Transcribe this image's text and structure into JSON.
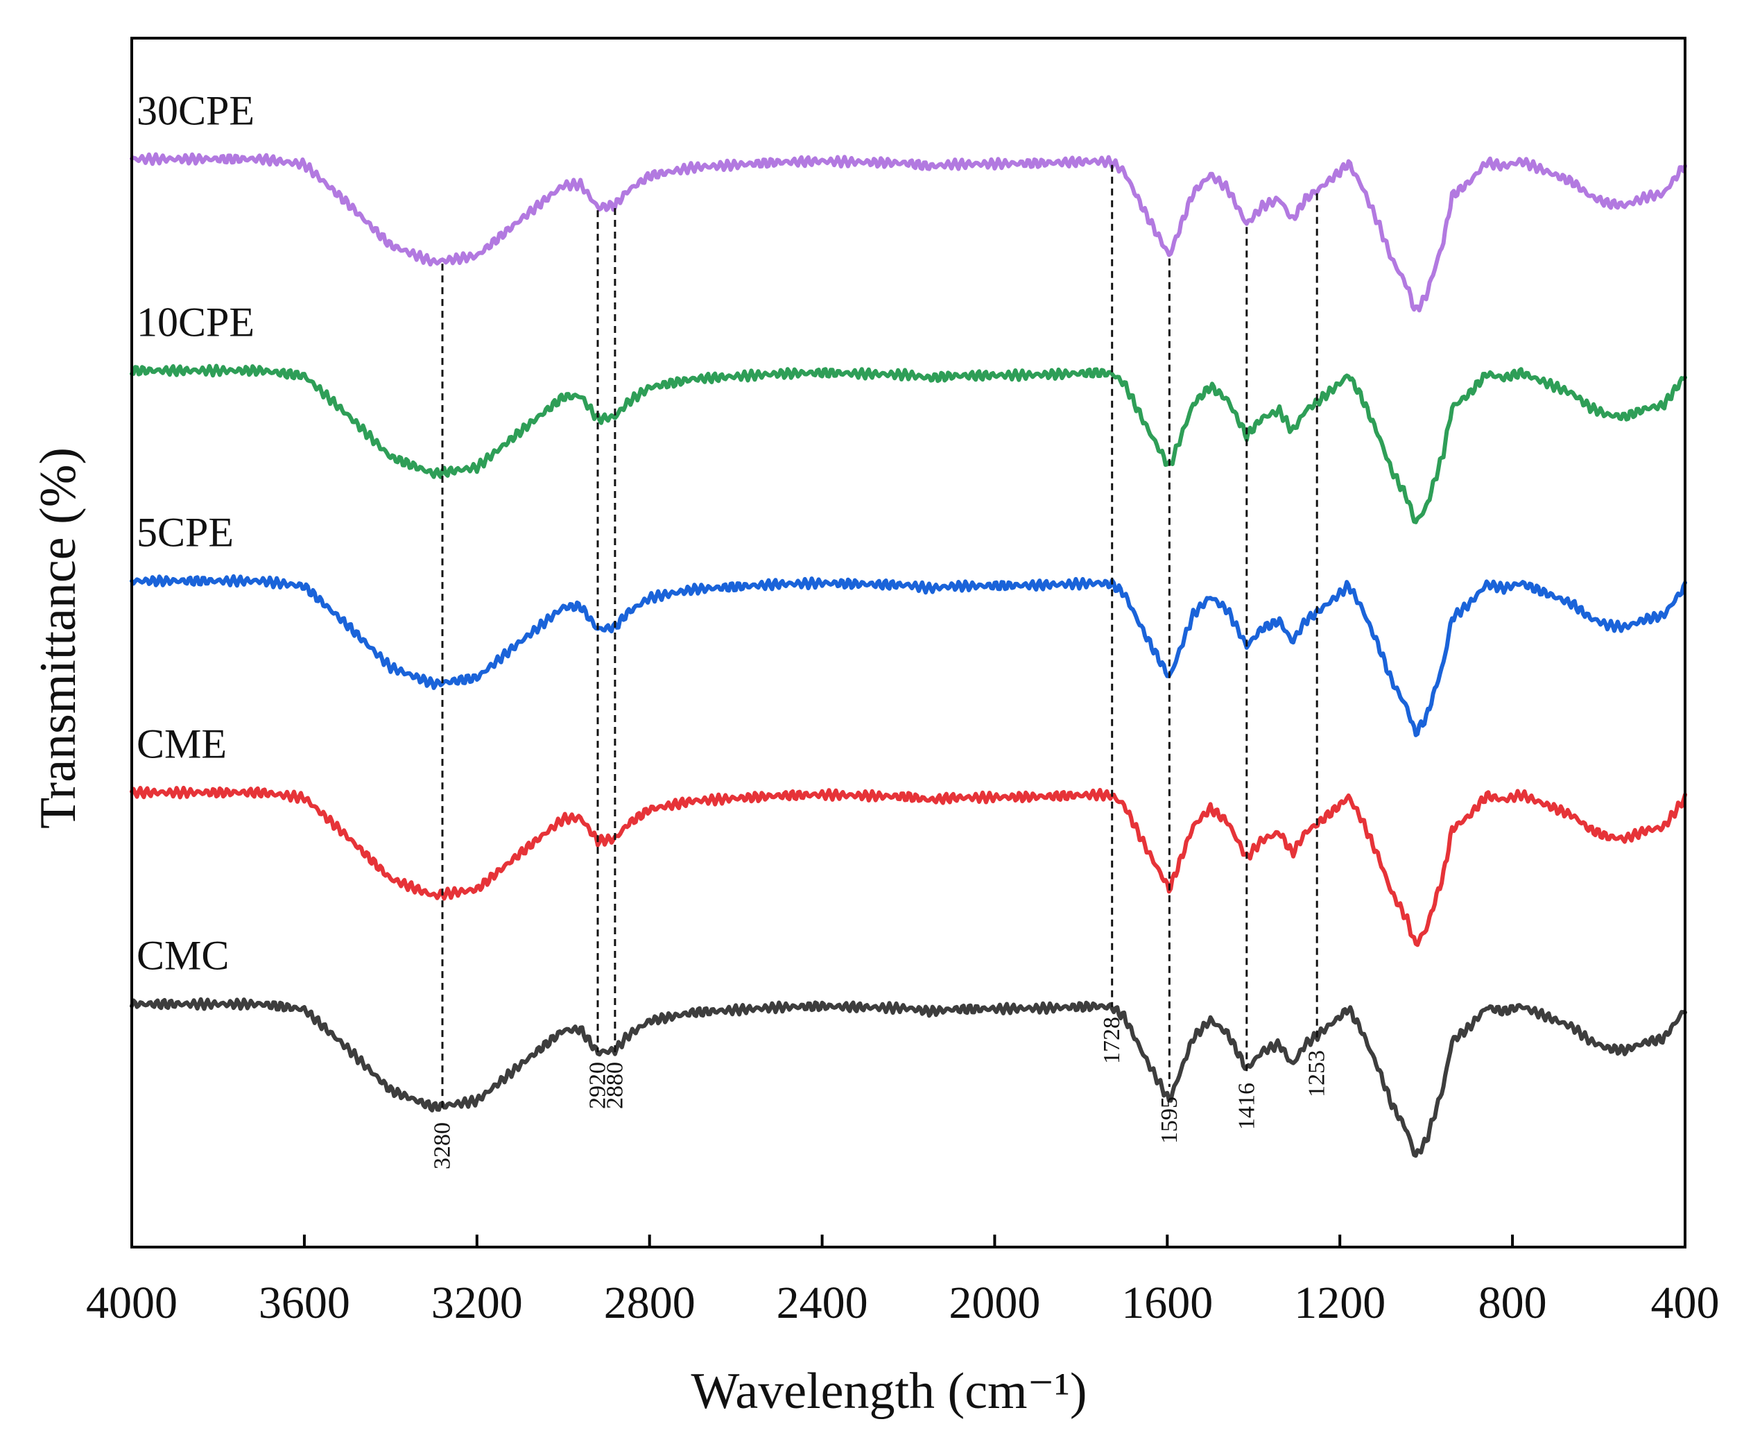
{
  "chart_data": {
    "type": "line",
    "title": "",
    "xlabel": "Wavelength (cm⁻¹)",
    "ylabel": "Transmittance (%)",
    "xlim": [
      4000,
      400
    ],
    "x_reversed": true,
    "ylim": [
      0,
      1
    ],
    "grid": false,
    "legend": "inline labels above each curve (left)",
    "x_ticks": [
      4000,
      3600,
      3200,
      2800,
      2400,
      2000,
      1600,
      1200,
      800,
      400
    ],
    "x_tick_labels": [
      "4000",
      "3600",
      "3200",
      "2800",
      "2400",
      "2000",
      "1600",
      "1200",
      "800",
      "400"
    ],
    "peak_markers": [
      {
        "wavenumber": 3280,
        "label": "3280"
      },
      {
        "wavenumber": 2920,
        "label": "2920"
      },
      {
        "wavenumber": 2880,
        "label": "2880"
      },
      {
        "wavenumber": 1728,
        "label": "1728"
      },
      {
        "wavenumber": 1595,
        "label": "1595"
      },
      {
        "wavenumber": 1416,
        "label": "1416"
      },
      {
        "wavenumber": 1253,
        "label": "1253"
      }
    ],
    "shape_points": [
      [
        4000,
        0.0
      ],
      [
        3700,
        0.0
      ],
      [
        3600,
        -0.05
      ],
      [
        3500,
        -0.42
      ],
      [
        3400,
        -0.82
      ],
      [
        3300,
        -0.98
      ],
      [
        3200,
        -0.92
      ],
      [
        3100,
        -0.58
      ],
      [
        3000,
        -0.25
      ],
      [
        2960,
        -0.24
      ],
      [
        2920,
        -0.46
      ],
      [
        2880,
        -0.44
      ],
      [
        2850,
        -0.3
      ],
      [
        2800,
        -0.16
      ],
      [
        2700,
        -0.08
      ],
      [
        2500,
        -0.03
      ],
      [
        2400,
        -0.02
      ],
      [
        2200,
        -0.04
      ],
      [
        2150,
        -0.07
      ],
      [
        2100,
        -0.05
      ],
      [
        1900,
        -0.04
      ],
      [
        1760,
        -0.02
      ],
      [
        1728,
        -0.03
      ],
      [
        1700,
        -0.12
      ],
      [
        1650,
        -0.52
      ],
      [
        1595,
        -0.92
      ],
      [
        1540,
        -0.32
      ],
      [
        1500,
        -0.15
      ],
      [
        1460,
        -0.28
      ],
      [
        1416,
        -0.62
      ],
      [
        1380,
        -0.45
      ],
      [
        1340,
        -0.38
      ],
      [
        1310,
        -0.58
      ],
      [
        1280,
        -0.38
      ],
      [
        1253,
        -0.3
      ],
      [
        1200,
        -0.12
      ],
      [
        1180,
        -0.04
      ],
      [
        1150,
        -0.25
      ],
      [
        1110,
        -0.62
      ],
      [
        1080,
        -0.95
      ],
      [
        1045,
        -1.2
      ],
      [
        1025,
        -1.45
      ],
      [
        1000,
        -1.3
      ],
      [
        960,
        -0.78
      ],
      [
        940,
        -0.35
      ],
      [
        900,
        -0.22
      ],
      [
        860,
        -0.03
      ],
      [
        820,
        -0.07
      ],
      [
        780,
        -0.02
      ],
      [
        720,
        -0.12
      ],
      [
        660,
        -0.22
      ],
      [
        620,
        -0.35
      ],
      [
        580,
        -0.42
      ],
      [
        540,
        -0.44
      ],
      [
        490,
        -0.36
      ],
      [
        450,
        -0.33
      ],
      [
        400,
        -0.05
      ]
    ],
    "series": [
      {
        "name": "30CPE",
        "color": "#b279e0",
        "offset": 0.9
      },
      {
        "name": "10CPE",
        "color": "#2e9e57",
        "offset": 0.725
      },
      {
        "name": "5CPE",
        "color": "#1a63d9",
        "offset": 0.551
      },
      {
        "name": "CME",
        "color": "#e63338",
        "offset": 0.376
      },
      {
        "name": "CMC",
        "color": "#3d3d3d",
        "offset": 0.201
      }
    ],
    "shape_scale": 0.087
  }
}
